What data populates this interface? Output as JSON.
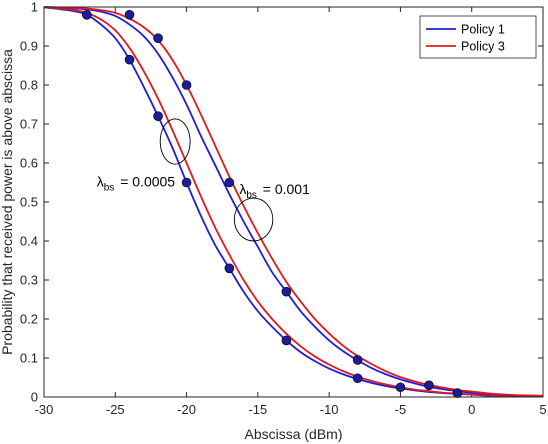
{
  "chart_data": {
    "type": "line",
    "xlabel": "Abscissa (dBm)",
    "ylabel": "Probability that received power is above abscissa",
    "xlim": [
      -30,
      5
    ],
    "ylim": [
      0,
      1
    ],
    "xticks": [
      -30,
      -25,
      -20,
      -15,
      -10,
      -5,
      0,
      5
    ],
    "yticks": [
      0,
      0.1,
      0.2,
      0.3,
      0.4,
      0.5,
      0.6,
      0.7,
      0.8,
      0.9,
      1
    ],
    "xtick_labels": [
      "-30",
      "-25",
      "-20",
      "-15",
      "-10",
      "-5",
      "0",
      "5"
    ],
    "ytick_labels": [
      "0",
      "0.1",
      "0.2",
      "0.3",
      "0.4",
      "0.5",
      "0.6",
      "0.7",
      "0.8",
      "0.9",
      "1"
    ],
    "legend": {
      "placement": "top-right",
      "entries": [
        "Policy 1",
        "Policy 3"
      ]
    },
    "colors": {
      "policy1": "#1f1fd6",
      "policy3": "#e0191f",
      "marker": "#1d1d99"
    },
    "series": [
      {
        "name": "Policy 1",
        "group": "lambda_bs = 0.0005",
        "color": "#1f1fd6",
        "x": [
          -30,
          -28,
          -27,
          -26,
          -25,
          -24,
          -23,
          -22,
          -21,
          -20,
          -19,
          -18,
          -17,
          -16,
          -15,
          -14,
          -13,
          -12,
          -11,
          -10,
          -9,
          -8,
          -7,
          -6,
          -5,
          -4,
          -3,
          -2,
          -1,
          0,
          1,
          2,
          3,
          4,
          5
        ],
        "y": [
          0.999,
          0.99,
          0.98,
          0.955,
          0.92,
          0.865,
          0.795,
          0.72,
          0.64,
          0.55,
          0.465,
          0.39,
          0.33,
          0.27,
          0.22,
          0.18,
          0.145,
          0.115,
          0.092,
          0.073,
          0.058,
          0.046,
          0.036,
          0.028,
          0.022,
          0.017,
          0.013,
          0.01,
          0.008,
          0.006,
          0.004,
          0.003,
          0.002,
          0.0015,
          0.001
        ]
      },
      {
        "name": "Policy 3",
        "group": "lambda_bs = 0.0005",
        "color": "#e0191f",
        "x": [
          -30,
          -28,
          -27,
          -26,
          -25,
          -24,
          -23,
          -22,
          -21,
          -20,
          -19,
          -18,
          -17,
          -16,
          -15,
          -14,
          -13,
          -12,
          -11,
          -10,
          -9,
          -8,
          -7,
          -6,
          -5,
          -4,
          -3,
          -2,
          -1,
          0,
          1,
          2,
          3,
          4,
          5
        ],
        "y": [
          0.999,
          0.993,
          0.985,
          0.968,
          0.94,
          0.895,
          0.835,
          0.765,
          0.685,
          0.6,
          0.515,
          0.435,
          0.365,
          0.3,
          0.245,
          0.2,
          0.162,
          0.13,
          0.104,
          0.083,
          0.066,
          0.052,
          0.041,
          0.032,
          0.025,
          0.019,
          0.015,
          0.011,
          0.009,
          0.007,
          0.005,
          0.004,
          0.003,
          0.002,
          0.0015
        ]
      },
      {
        "name": "Policy 1",
        "group": "lambda_bs = 0.001",
        "color": "#1f1fd6",
        "x": [
          -30,
          -28,
          -27,
          -26,
          -25,
          -24,
          -23,
          -22,
          -21,
          -20,
          -19,
          -18,
          -17,
          -16,
          -15,
          -14,
          -13,
          -12,
          -11,
          -10,
          -9,
          -8,
          -7,
          -6,
          -5,
          -4,
          -3,
          -2,
          -1,
          0,
          1,
          2,
          3,
          4,
          5
        ],
        "y": [
          1.0,
          0.997,
          0.994,
          0.988,
          0.977,
          0.955,
          0.925,
          0.88,
          0.82,
          0.75,
          0.67,
          0.595,
          0.52,
          0.45,
          0.385,
          0.32,
          0.27,
          0.22,
          0.18,
          0.145,
          0.117,
          0.094,
          0.074,
          0.058,
          0.045,
          0.035,
          0.026,
          0.02,
          0.015,
          0.011,
          0.008,
          0.006,
          0.004,
          0.003,
          0.002
        ]
      },
      {
        "name": "Policy 3",
        "group": "lambda_bs = 0.001",
        "color": "#e0191f",
        "x": [
          -30,
          -28,
          -27,
          -26,
          -25,
          -24,
          -23,
          -22,
          -21,
          -20,
          -19,
          -18,
          -17,
          -16,
          -15,
          -14,
          -13,
          -12,
          -11,
          -10,
          -9,
          -8,
          -7,
          -6,
          -5,
          -4,
          -3,
          -2,
          -1,
          0,
          1,
          2,
          3,
          4,
          5
        ],
        "y": [
          1.0,
          0.998,
          0.996,
          0.992,
          0.985,
          0.97,
          0.948,
          0.915,
          0.865,
          0.8,
          0.725,
          0.645,
          0.565,
          0.49,
          0.42,
          0.355,
          0.295,
          0.245,
          0.2,
          0.163,
          0.131,
          0.105,
          0.084,
          0.066,
          0.051,
          0.04,
          0.031,
          0.024,
          0.018,
          0.014,
          0.01,
          0.007,
          0.005,
          0.004,
          0.003
        ]
      }
    ],
    "markers": [
      {
        "x": -27,
        "y": 0.98
      },
      {
        "x": -24,
        "y": 0.98
      },
      {
        "x": -24,
        "y": 0.865
      },
      {
        "x": -22,
        "y": 0.92
      },
      {
        "x": -22,
        "y": 0.72
      },
      {
        "x": -20,
        "y": 0.8
      },
      {
        "x": -20,
        "y": 0.55
      },
      {
        "x": -17,
        "y": 0.55
      },
      {
        "x": -17,
        "y": 0.33
      },
      {
        "x": -13,
        "y": 0.27
      },
      {
        "x": -13,
        "y": 0.145
      },
      {
        "x": -8,
        "y": 0.095
      },
      {
        "x": -8,
        "y": 0.048
      },
      {
        "x": -5,
        "y": 0.025
      },
      {
        "x": -3,
        "y": 0.03
      },
      {
        "x": -1,
        "y": 0.01
      }
    ],
    "annotations": [
      {
        "id": "a1",
        "label": "λ",
        "sub": "bs",
        "value": "= 0.0005",
        "x": -26.3,
        "y": 0.54,
        "ellipse": {
          "cx": -20.8,
          "cy": 0.655,
          "rx": 1.05,
          "ry": 0.058
        }
      },
      {
        "id": "a2",
        "label": "λ",
        "sub": "bs",
        "value": "= 0.001",
        "x": -16.3,
        "y": 0.52,
        "ellipse": {
          "cx": -15.3,
          "cy": 0.455,
          "rx": 1.35,
          "ry": 0.055
        }
      }
    ]
  }
}
